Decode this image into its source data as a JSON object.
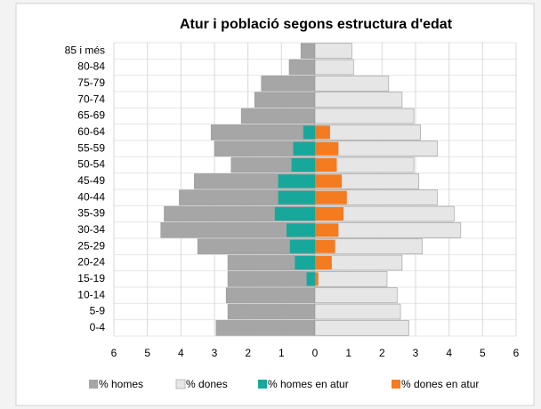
{
  "chart_data": {
    "type": "pyramid",
    "title": "Atur i població segons estructura d'edat",
    "categories": [
      "0-4",
      "5-9",
      "10-14",
      "15-19",
      "20-24",
      "25-29",
      "30-34",
      "35-39",
      "40-44",
      "45-49",
      "50-54",
      "55-59",
      "60-64",
      "65-69",
      "70-74",
      "75-79",
      "80-84",
      "85 i més"
    ],
    "series": [
      {
        "name": "% homes",
        "color": "#a6a6a6",
        "values": [
          -2.95,
          -2.6,
          -2.65,
          -2.6,
          -2.6,
          -3.5,
          -4.6,
          -4.5,
          -4.05,
          -3.6,
          -2.5,
          -3.0,
          -3.1,
          -2.2,
          -1.8,
          -1.6,
          -0.77,
          -0.42
        ]
      },
      {
        "name": "% dones",
        "color": "#e6e6e6",
        "values": [
          2.8,
          2.55,
          2.45,
          2.15,
          2.6,
          3.2,
          4.35,
          4.15,
          3.65,
          3.1,
          2.95,
          3.65,
          3.15,
          2.95,
          2.6,
          2.2,
          1.15,
          1.1
        ]
      },
      {
        "name": "% homes en atur",
        "color": "#17a89b",
        "values": [
          null,
          null,
          null,
          -0.25,
          -0.6,
          -0.75,
          -0.85,
          -1.2,
          -1.1,
          -1.1,
          -0.7,
          -0.65,
          -0.35,
          null,
          null,
          null,
          null,
          null
        ]
      },
      {
        "name": "% dones en atur",
        "color": "#f47b20",
        "values": [
          null,
          null,
          null,
          0.1,
          0.5,
          0.6,
          0.7,
          0.85,
          0.95,
          0.8,
          0.65,
          0.7,
          0.45,
          null,
          null,
          null,
          null,
          null
        ]
      }
    ],
    "xlim": [
      -6,
      6
    ],
    "xticks": [
      {
        "value": -6,
        "label": "6"
      },
      {
        "value": -5,
        "label": "5"
      },
      {
        "value": -4,
        "label": "4"
      },
      {
        "value": -3,
        "label": "3"
      },
      {
        "value": -2,
        "label": "2"
      },
      {
        "value": -1,
        "label": "1"
      },
      0,
      1,
      2,
      3,
      4,
      5,
      6
    ],
    "grid": true
  }
}
